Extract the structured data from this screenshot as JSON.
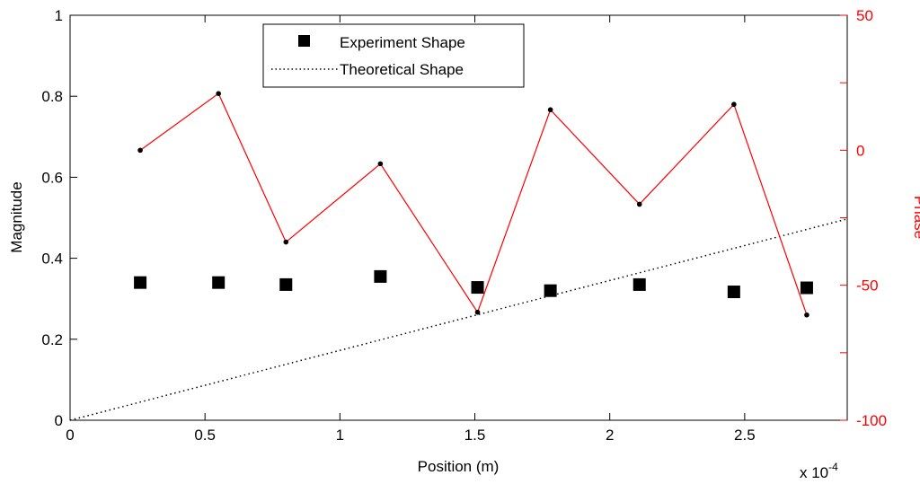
{
  "chart_data": {
    "type": "scatter",
    "xlabel": "Position (m)",
    "ylabel_left": "Magnitude",
    "ylabel_right": "Phase",
    "x_multiplier_label": "x 10",
    "x_multiplier_exponent": "-4",
    "xlim": [
      0,
      2.88
    ],
    "ylim_left": [
      0,
      1
    ],
    "ylim_right": [
      -100,
      50
    ],
    "x_ticks": [
      0,
      0.5,
      1,
      1.5,
      2,
      2.5
    ],
    "x_tick_labels": [
      "0",
      "0.5",
      "1",
      "1.5",
      "2",
      "2.5"
    ],
    "y_left_ticks": [
      0,
      0.2,
      0.4,
      0.6,
      0.8,
      1
    ],
    "y_left_tick_labels": [
      "0",
      "0.2",
      "0.4",
      "0.6",
      "0.8",
      "1"
    ],
    "y_right_ticks": [
      -100,
      -50,
      0,
      50
    ],
    "y_right_tick_labels": [
      "-100",
      "-50",
      "0",
      "50"
    ],
    "grid": false,
    "legend_position": "top-center",
    "colors": {
      "phase": "#ff0000",
      "magnitude": "#000000",
      "theory": "#000000"
    },
    "series": [
      {
        "name": "Experiment Shape",
        "axis": "left",
        "style": "square-markers",
        "x": [
          0.26,
          0.55,
          0.8,
          1.15,
          1.51,
          1.78,
          2.11,
          2.46,
          2.73
        ],
        "y": [
          0.34,
          0.34,
          0.335,
          0.355,
          0.328,
          0.32,
          0.335,
          0.317,
          0.327
        ]
      },
      {
        "name": "Theoretical Shape",
        "axis": "left",
        "style": "dotted-line",
        "x": [
          0,
          2.88
        ],
        "y": [
          0,
          0.497
        ]
      },
      {
        "name": "Phase",
        "axis": "right",
        "style": "red-line-with-dots",
        "x": [
          0.26,
          0.55,
          0.8,
          1.15,
          1.51,
          1.78,
          2.11,
          2.46,
          2.73
        ],
        "y": [
          0,
          21,
          -34,
          -5,
          -60,
          15,
          -20,
          17,
          -61
        ]
      }
    ],
    "legend": [
      {
        "label": "Experiment Shape",
        "symbol": "square"
      },
      {
        "label": "Theoretical Shape",
        "symbol": "dotted"
      }
    ]
  }
}
